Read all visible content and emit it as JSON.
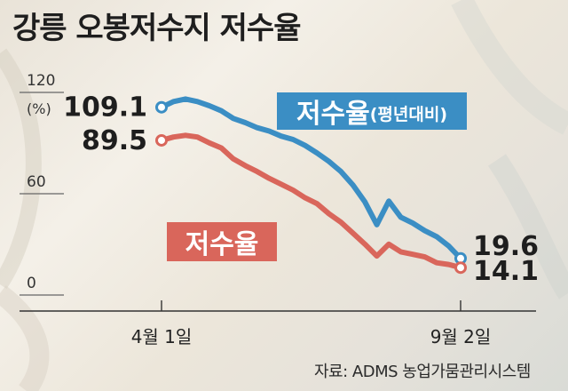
{
  "title": "강릉 오봉저수지 저수율",
  "source": "자료: ADMS 농업가뭄관리시스템",
  "chart_data": {
    "type": "line",
    "y_unit": "(%)",
    "yticks": [
      120,
      60,
      0
    ],
    "ylim": [
      0,
      120
    ],
    "x_ticks": [
      "4월 1일",
      "9월 2일"
    ],
    "grid": false,
    "x": [
      "4월 1일",
      "",
      "",
      "",
      "",
      "",
      "",
      "",
      "",
      "",
      "",
      "",
      "",
      "",
      "",
      "",
      "",
      "",
      "",
      "",
      "",
      "",
      "",
      "",
      "",
      "9월 2일"
    ],
    "series": [
      {
        "name": "저수율(평년대비)",
        "label_main": "저수율",
        "label_sub": "(평년대비)",
        "color": "#3b8ec4",
        "start_label": "109.1",
        "end_label": "19.6",
        "values": [
          109.1,
          112.5,
          114.0,
          112.5,
          110.0,
          107.0,
          102.5,
          100.0,
          97.0,
          95.0,
          92.0,
          90.0,
          86.5,
          82.0,
          77.0,
          71.0,
          63.0,
          53.0,
          39.5,
          53.5,
          44.0,
          40.5,
          36.0,
          32.5,
          27.0,
          19.6
        ]
      },
      {
        "name": "저수율",
        "label_main": "저수율",
        "color": "#d9665b",
        "start_label": "89.5",
        "end_label": "14.1",
        "values": [
          89.5,
          91.5,
          92.5,
          91.5,
          88.0,
          85.0,
          78.5,
          74.5,
          71.0,
          67.0,
          63.5,
          60.0,
          55.5,
          52.0,
          46.0,
          41.0,
          34.5,
          28.0,
          21.0,
          28.0,
          23.5,
          22.0,
          20.5,
          17.0,
          16.0,
          14.1
        ]
      }
    ]
  }
}
